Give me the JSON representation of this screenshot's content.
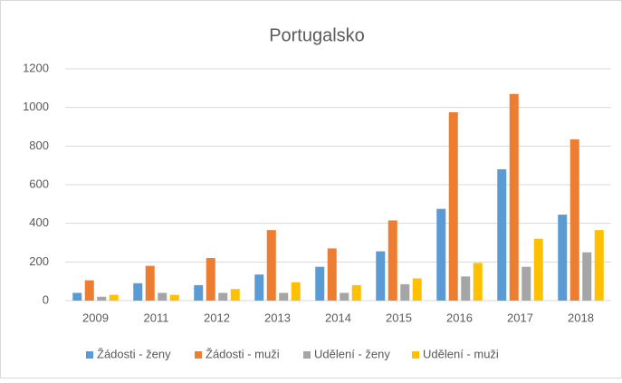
{
  "chart_data": {
    "type": "bar",
    "title": "Portugalsko",
    "categories": [
      "2009",
      "2011",
      "2012",
      "2013",
      "2014",
      "2015",
      "2016",
      "2017",
      "2018"
    ],
    "series": [
      {
        "name": "Žádosti - ženy",
        "color": "#5b9bd5",
        "values": [
          40,
          90,
          80,
          135,
          175,
          255,
          475,
          680,
          445
        ]
      },
      {
        "name": "Žádosti - muži",
        "color": "#ed7d31",
        "values": [
          105,
          180,
          220,
          365,
          270,
          415,
          975,
          1070,
          835
        ]
      },
      {
        "name": "Udělení - ženy",
        "color": "#a5a5a5",
        "values": [
          20,
          40,
          40,
          40,
          40,
          85,
          125,
          175,
          250
        ]
      },
      {
        "name": "Udělení - muži",
        "color": "#ffc000",
        "values": [
          30,
          30,
          60,
          95,
          80,
          115,
          195,
          320,
          365
        ]
      }
    ],
    "ylim": [
      0,
      1200
    ],
    "yticks": [
      0,
      200,
      400,
      600,
      800,
      1000,
      1200
    ],
    "grid": true,
    "legend": "bottom"
  }
}
